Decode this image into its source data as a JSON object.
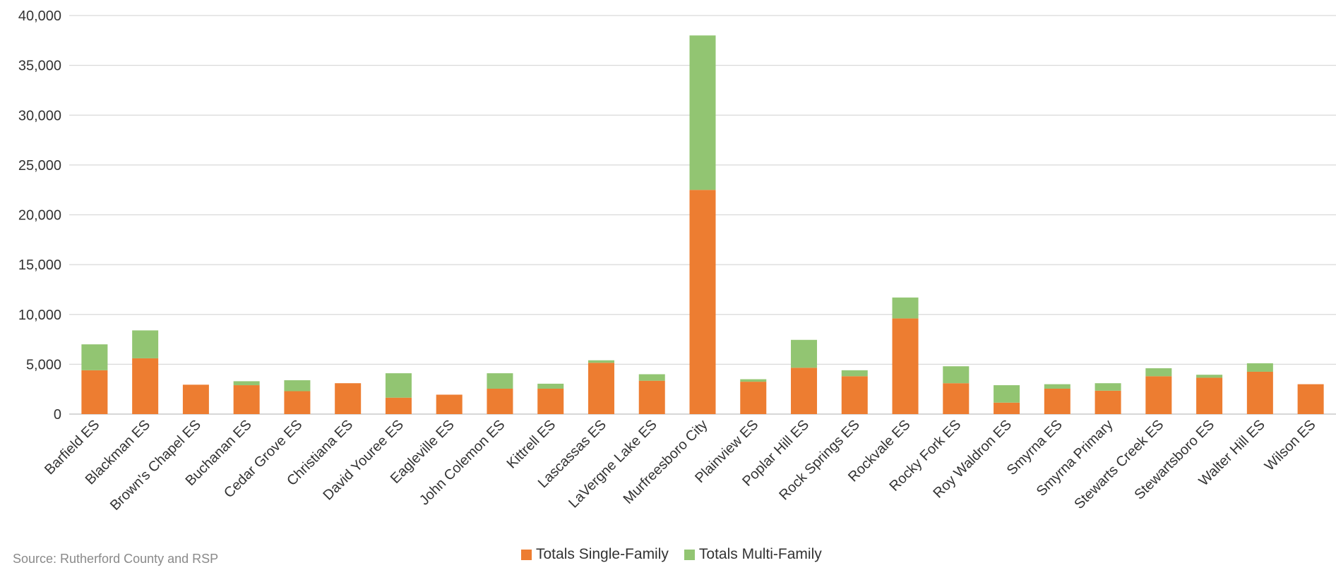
{
  "chart_data": {
    "type": "bar",
    "stacked": true,
    "categories": [
      "Barfield ES",
      "Blackman ES",
      "Brown's Chapel ES",
      "Buchanan ES",
      "Cedar Grove ES",
      "Christiana ES",
      "David Youree ES",
      "Eagleville ES",
      "John Colemon ES",
      "Kittrell ES",
      "Lascassas ES",
      "LaVergne Lake ES",
      "Murfreesboro City",
      "Plainview ES",
      "Poplar Hill ES",
      "Rock Springs ES",
      "Rockvale ES",
      "Rocky Fork ES",
      "Roy Waldron ES",
      "Smyrna ES",
      "Smyrna Primary",
      "Stewarts Creek ES",
      "Stewartsboro ES",
      "Walter Hill ES",
      "Wilson ES"
    ],
    "series": [
      {
        "name": "Totals Single-Family",
        "color": "#ED7D31",
        "values": [
          4400,
          5600,
          2950,
          2900,
          2300,
          3100,
          1650,
          1950,
          2550,
          2550,
          5150,
          3350,
          22500,
          3250,
          4650,
          3800,
          9600,
          3100,
          1150,
          2550,
          2350,
          3800,
          3650,
          4250,
          3000
        ]
      },
      {
        "name": "Totals Multi-Family",
        "color": "#92C572",
        "values": [
          2600,
          2800,
          0,
          400,
          1100,
          0,
          2450,
          0,
          1550,
          500,
          250,
          650,
          15500,
          250,
          2800,
          600,
          2100,
          1700,
          1750,
          450,
          750,
          800,
          300,
          850,
          0
        ]
      }
    ],
    "yticks": [
      0,
      5000,
      10000,
      15000,
      20000,
      25000,
      30000,
      35000,
      40000
    ],
    "ylim": [
      0,
      40000
    ],
    "grid": true,
    "legend_position": "bottom-center"
  },
  "source": "Source: Rutherford County and RSP"
}
